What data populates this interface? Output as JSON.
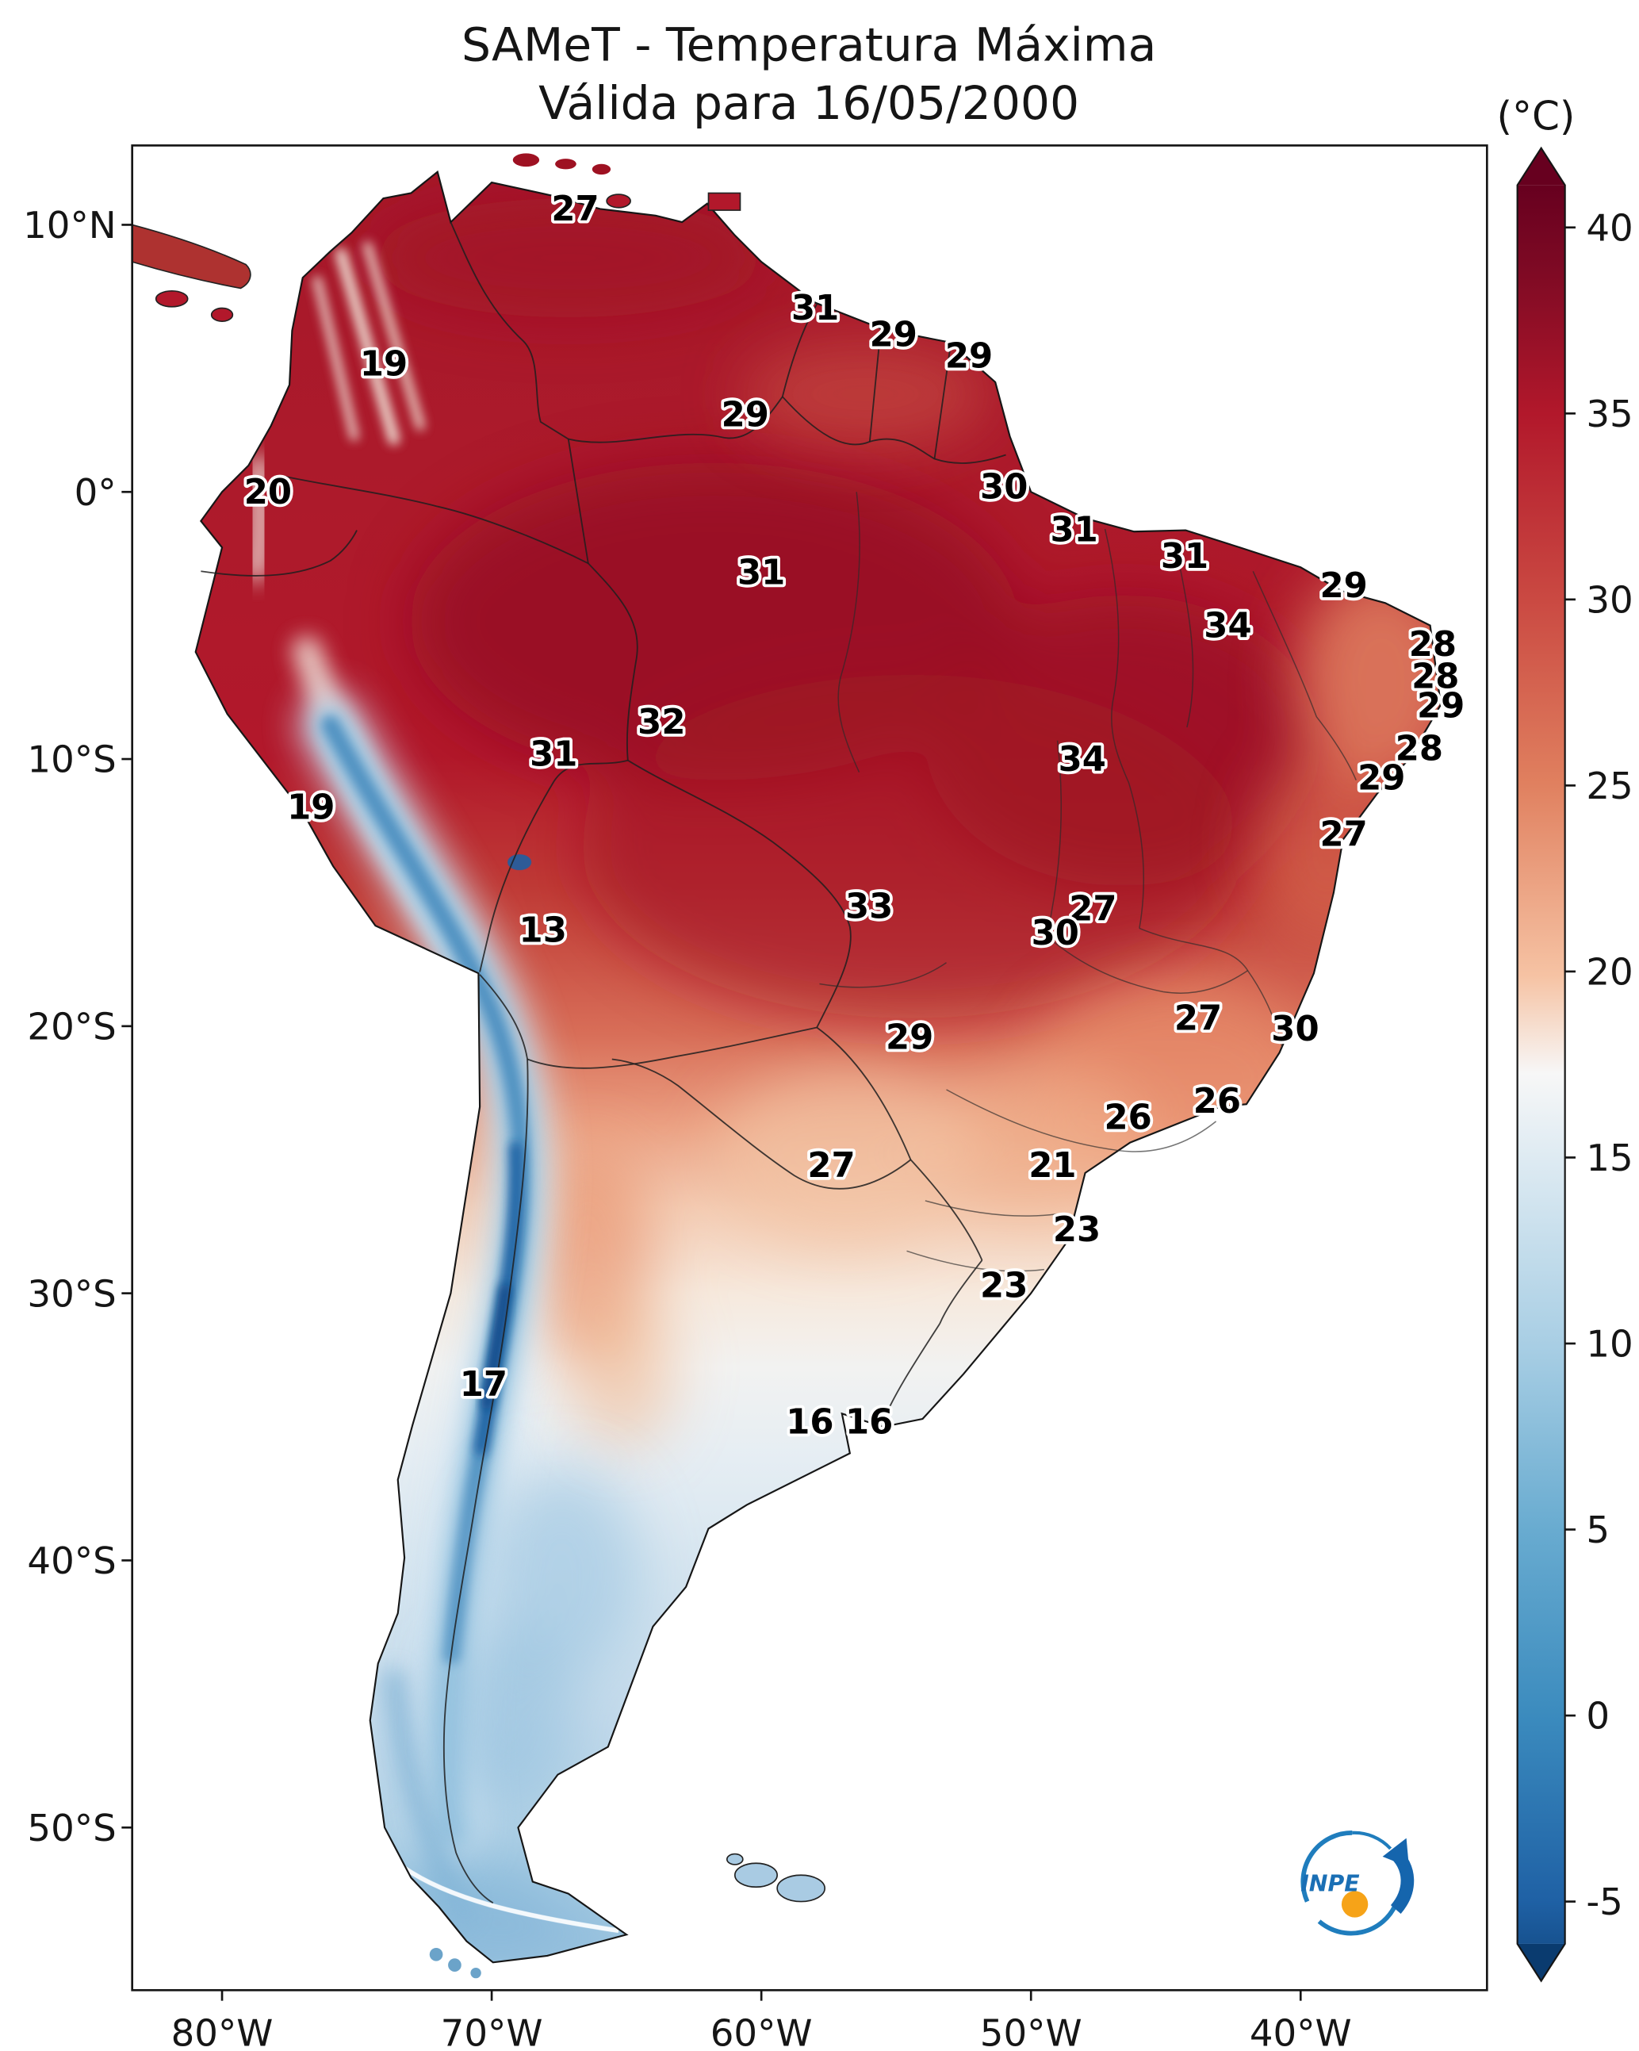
{
  "title": {
    "line1": "SAMeT - Temperatura Máxima",
    "line2": "Válida para 16/05/2000"
  },
  "colorbar": {
    "unit_label": "(°C)",
    "ticks": [
      40,
      35,
      30,
      25,
      20,
      15,
      10,
      5,
      0,
      -5
    ]
  },
  "axes": {
    "y_ticks": [
      {
        "label": "10°N",
        "lat": 10
      },
      {
        "label": "0°",
        "lat": 0
      },
      {
        "label": "10°S",
        "lat": -10
      },
      {
        "label": "20°S",
        "lat": -20
      },
      {
        "label": "30°S",
        "lat": -30
      },
      {
        "label": "40°S",
        "lat": -40
      },
      {
        "label": "50°S",
        "lat": -50
      }
    ],
    "x_ticks": [
      {
        "label": "80°W",
        "lon": -80
      },
      {
        "label": "70°W",
        "lon": -70
      },
      {
        "label": "60°W",
        "lon": -60
      },
      {
        "label": "50°W",
        "lon": -50
      },
      {
        "label": "40°W",
        "lon": -40
      }
    ]
  },
  "logo": {
    "text": "INPE"
  },
  "chart_data": {
    "type": "heatmap",
    "title": "SAMeT - Temperatura Máxima",
    "subtitle": "Válida para 16/05/2000",
    "unit": "°C",
    "colormap": "RdBu_r",
    "colorbar_ticks": [
      40,
      35,
      30,
      25,
      20,
      15,
      10,
      5,
      0,
      -5
    ],
    "x_axis": {
      "ticks": [
        "80°W",
        "70°W",
        "60°W",
        "50°W",
        "40°W"
      ]
    },
    "y_axis": {
      "ticks": [
        "10°N",
        "0°",
        "10°S",
        "20°S",
        "30°S",
        "40°S",
        "50°S"
      ]
    },
    "stations": [
      {
        "lat": 10.6,
        "lon": -66.9,
        "value": 27
      },
      {
        "lat": 6.9,
        "lon": -58.0,
        "value": 31
      },
      {
        "lat": 5.9,
        "lon": -55.1,
        "value": 29
      },
      {
        "lat": 5.1,
        "lon": -52.3,
        "value": 29
      },
      {
        "lat": 4.8,
        "lon": -74.0,
        "value": 19
      },
      {
        "lat": 2.9,
        "lon": -60.6,
        "value": 29
      },
      {
        "lat": 0.0,
        "lon": -78.3,
        "value": 20
      },
      {
        "lat": 0.2,
        "lon": -51.0,
        "value": 30
      },
      {
        "lat": -1.4,
        "lon": -48.4,
        "value": 31
      },
      {
        "lat": -3.0,
        "lon": -60.0,
        "value": 31
      },
      {
        "lat": -2.4,
        "lon": -44.3,
        "value": 31
      },
      {
        "lat": -3.5,
        "lon": -38.4,
        "value": 29
      },
      {
        "lat": -5.0,
        "lon": -42.7,
        "value": 34
      },
      {
        "lat": -5.7,
        "lon": -35.1,
        "value": 28
      },
      {
        "lat": -6.9,
        "lon": -35.0,
        "value": 28
      },
      {
        "lat": -8.0,
        "lon": -34.8,
        "value": 29
      },
      {
        "lat": -8.6,
        "lon": -63.7,
        "value": 32
      },
      {
        "lat": -9.8,
        "lon": -67.7,
        "value": 31
      },
      {
        "lat": -10.0,
        "lon": -48.1,
        "value": 34
      },
      {
        "lat": -9.6,
        "lon": -35.6,
        "value": 28
      },
      {
        "lat": -10.7,
        "lon": -37.0,
        "value": 29
      },
      {
        "lat": -11.8,
        "lon": -76.7,
        "value": 19
      },
      {
        "lat": -12.8,
        "lon": -38.4,
        "value": 27
      },
      {
        "lat": -16.4,
        "lon": -68.1,
        "value": 13
      },
      {
        "lat": -15.5,
        "lon": -56.0,
        "value": 33
      },
      {
        "lat": -15.6,
        "lon": -47.7,
        "value": 27
      },
      {
        "lat": -16.5,
        "lon": -49.1,
        "value": 30
      },
      {
        "lat": -20.4,
        "lon": -54.5,
        "value": 29
      },
      {
        "lat": -19.7,
        "lon": -43.8,
        "value": 27
      },
      {
        "lat": -20.1,
        "lon": -40.2,
        "value": 30
      },
      {
        "lat": -23.4,
        "lon": -46.4,
        "value": 26
      },
      {
        "lat": -22.8,
        "lon": -43.1,
        "value": 26
      },
      {
        "lat": -25.2,
        "lon": -57.4,
        "value": 27
      },
      {
        "lat": -25.2,
        "lon": -49.2,
        "value": 21
      },
      {
        "lat": -27.6,
        "lon": -48.3,
        "value": 23
      },
      {
        "lat": -29.7,
        "lon": -51.0,
        "value": 23
      },
      {
        "lat": -33.4,
        "lon": -70.3,
        "value": 17
      },
      {
        "lat": -34.8,
        "lon": -58.2,
        "value": 16
      },
      {
        "lat": -34.8,
        "lon": -56.0,
        "value": 16
      }
    ]
  }
}
